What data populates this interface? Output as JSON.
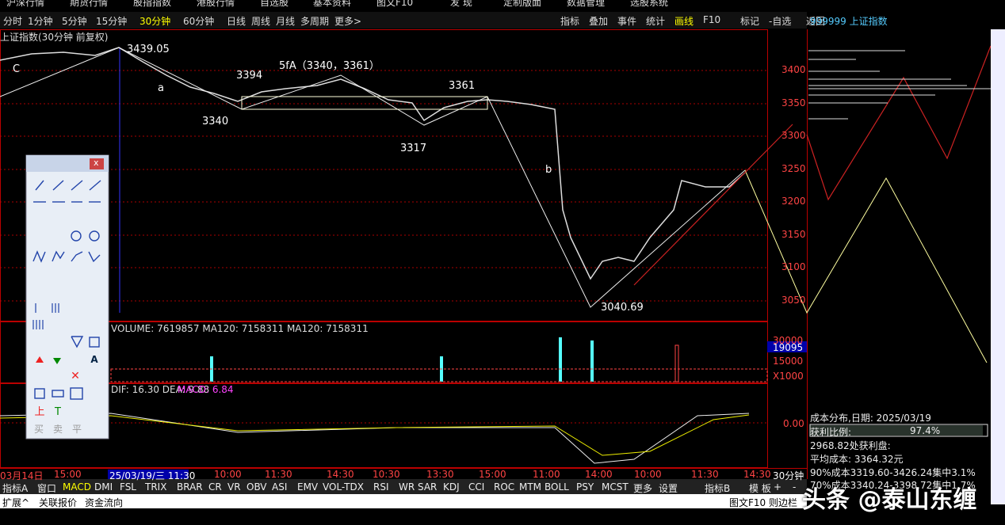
{
  "menu": [
    "沪深行情",
    "期货行情",
    "股指指数",
    "港股行情",
    "自选股",
    "基本资料",
    "图文F10",
    "发 现",
    "定制版面",
    "数据管理",
    "选股系统"
  ],
  "period_tabs": [
    "分时",
    "1分钟",
    "5分钟",
    "15分钟",
    "30分钟",
    "60分钟",
    "日线",
    "周线",
    "月线",
    "多周期",
    "更多>"
  ],
  "tool_tabs": [
    "指标",
    "叠加",
    "事件",
    "统计",
    "画线",
    "F10",
    "标记",
    "-自选",
    "返回"
  ],
  "right_title": "999999 上证指数",
  "chart_title": "上证指数(30分钟 前复权)",
  "price_ticks": [
    "3400",
    "3350",
    "3300",
    "3250",
    "3200",
    "3150",
    "3100",
    "3050"
  ],
  "annotations": {
    "high": "3439.05",
    "a": "a",
    "p3394": "3394",
    "fA": "5fA（3340，3361）",
    "p3340": "3340",
    "p3361": "3361",
    "p3317": "3317",
    "b": "b",
    "low": "3040.69",
    "c": "C"
  },
  "volume": {
    "label": "VOLUME: 7619857  MA120: 7158311  MA120: 7158311",
    "ticks": [
      "30000",
      "19095",
      "15000",
      "X1000"
    ]
  },
  "macd": {
    "label": "DIF: 16.30  DEA: 9.88",
    "macd_label": "MACD: 6.84",
    "tick": "0.00"
  },
  "time_axis": [
    "03月14日",
    "15:00",
    "25/03/19/三 11:30",
    "10:00",
    "11:30",
    "14:30",
    "10:30",
    "13:30",
    "15:00",
    "11:00",
    "14:00",
    "10:00",
    "11:30",
    "14:30"
  ],
  "period_label": "30分钟",
  "indicator_tabs": [
    "指标A",
    "窗口",
    "MACD",
    "DMI",
    "FSL",
    "TRIX",
    "BRAR",
    "CR",
    "VR",
    "OBV",
    "ASI",
    "EMV",
    "VOL-TDX",
    "RSI",
    "WR",
    "SAR",
    "KDJ",
    "CCI",
    "ROC",
    "MTM",
    "BOLL",
    "PSY",
    "MCST",
    "更多",
    "设置"
  ],
  "right_tabs": [
    "指标B",
    "模 板",
    "+",
    "-"
  ],
  "bottom_left": [
    "扩展^",
    "关联报价",
    "资金流向"
  ],
  "bottom_right": [
    "图文F10",
    "则边栏"
  ],
  "toolbox": {
    "close": "x",
    "trade": [
      "买",
      "卖",
      "平"
    ]
  },
  "cost": {
    "title": "成本分布,日期:  2025/03/19",
    "profit_label": "获利比例:",
    "profit_value": "97.4%",
    "profit_line": "2968.82处获利盘:",
    "avg": "平均成本: 3364.32元",
    "c90": "90%成本3319.60-3426.24集中3.1%",
    "c70": "70%成本3340.24-3398.72集中1.7%"
  },
  "watermark": "头条 @泰山东缠"
}
